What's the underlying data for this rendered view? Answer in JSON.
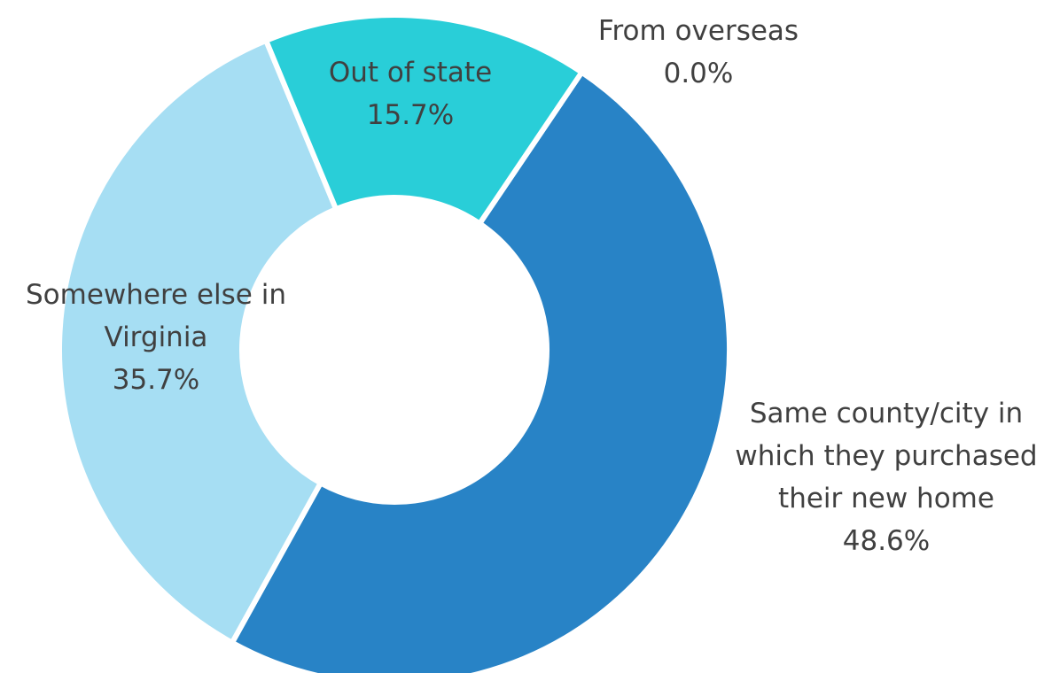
{
  "chart_data": {
    "type": "donut",
    "title": "",
    "slices": [
      {
        "category": "Same county/city in which they purchased their new home",
        "value": 48.6,
        "value_label": "48.6%",
        "label_lines": [
          "Same county/city in",
          "which they purchased",
          "their new home",
          "48.6%"
        ],
        "color": "#2883c6"
      },
      {
        "category": "Somewhere else in Virginia",
        "value": 35.7,
        "value_label": "35.7%",
        "label_lines": [
          "Somewhere else in",
          "Virginia",
          "35.7%"
        ],
        "color": "#a6def3"
      },
      {
        "category": "Out of state",
        "value": 15.7,
        "value_label": "15.7%",
        "label_lines": [
          "Out of state",
          "15.7%"
        ],
        "color": "#29ced8"
      },
      {
        "category": "From overseas",
        "value": 0.0,
        "value_label": "0.0%",
        "label_lines": [
          "From overseas",
          "0.0%"
        ],
        "color": "#1f5f93"
      }
    ],
    "legend": "none"
  }
}
